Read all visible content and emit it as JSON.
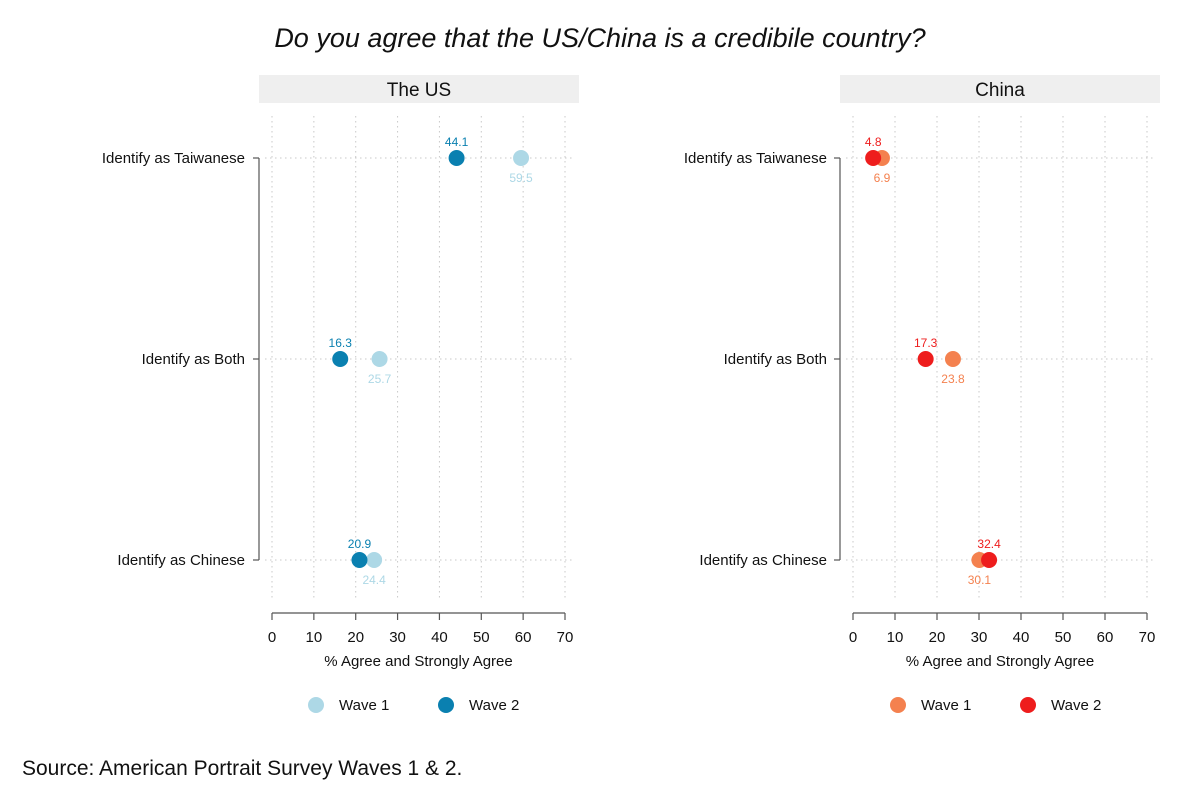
{
  "title": "Do you agree that the US/China is a credibile country?",
  "source": "Source: American Portrait Survey Waves 1 & 2.",
  "chart_data": [
    {
      "type": "scatter",
      "panel_title": "The US",
      "categories": [
        "Identify as Taiwanese",
        "Identify as Both",
        "Identify as Chinese"
      ],
      "series": [
        {
          "name": "Wave 1",
          "values": [
            59.5,
            25.7,
            24.4
          ],
          "color": "#add8e6"
        },
        {
          "name": "Wave 2",
          "values": [
            44.1,
            16.3,
            20.9
          ],
          "color": "#0a80b0"
        }
      ],
      "xlabel": "% Agree and Strongly Agree",
      "xlim": [
        0,
        70
      ],
      "xticks": [
        0,
        10,
        20,
        30,
        40,
        50,
        60,
        70
      ],
      "grid": true,
      "legend": "bottom"
    },
    {
      "type": "scatter",
      "panel_title": "China",
      "categories": [
        "Identify as Taiwanese",
        "Identify as Both",
        "Identify as Chinese"
      ],
      "series": [
        {
          "name": "Wave 1",
          "values": [
            6.9,
            23.8,
            30.1
          ],
          "color": "#f4814f"
        },
        {
          "name": "Wave 2",
          "values": [
            4.8,
            17.3,
            32.4
          ],
          "color": "#ee1d1d"
        }
      ],
      "xlabel": "% Agree and Strongly Agree",
      "xlim": [
        0,
        70
      ],
      "xticks": [
        0,
        10,
        20,
        30,
        40,
        50,
        60,
        70
      ],
      "grid": true,
      "legend": "bottom"
    }
  ]
}
